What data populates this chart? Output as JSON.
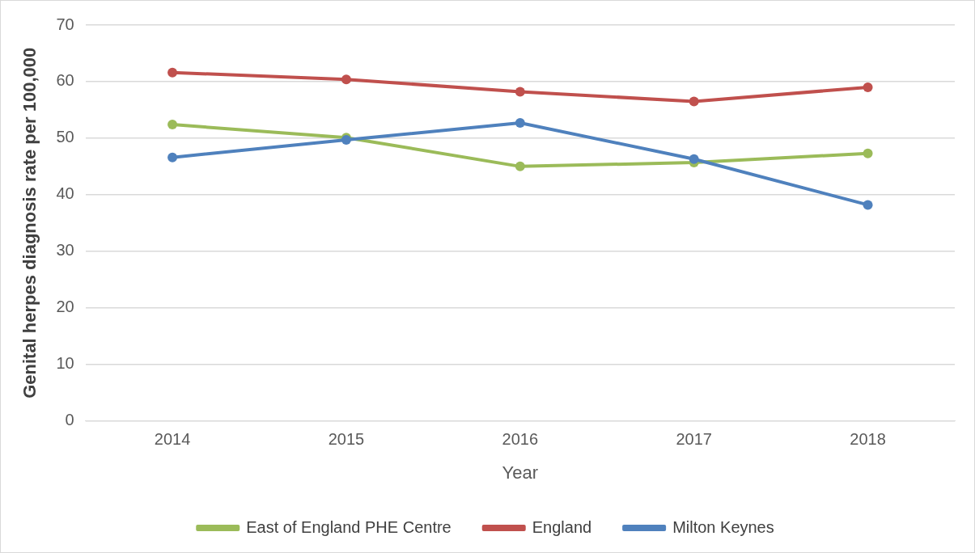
{
  "chart_data": {
    "type": "line",
    "xlabel": "Year",
    "ylabel": "Genital herpes diagnosis rate per 100,000",
    "categories": [
      "2014",
      "2015",
      "2016",
      "2017",
      "2018"
    ],
    "series": [
      {
        "name": "East of England PHE Centre",
        "color": "#9bbb59",
        "values": [
          52.4,
          50.1,
          45.0,
          45.7,
          47.3
        ]
      },
      {
        "name": "England",
        "color": "#c0504d",
        "values": [
          61.6,
          60.4,
          58.2,
          56.5,
          59.0
        ]
      },
      {
        "name": "Milton Keynes",
        "color": "#4f81bd",
        "values": [
          46.6,
          49.7,
          52.7,
          46.3,
          38.2
        ]
      }
    ],
    "ylim": [
      0,
      70
    ],
    "yticks": [
      0,
      10,
      20,
      30,
      40,
      50,
      60,
      70
    ],
    "grid": "y",
    "legend": "bottom",
    "marker": "circle",
    "line_style": "solid"
  }
}
